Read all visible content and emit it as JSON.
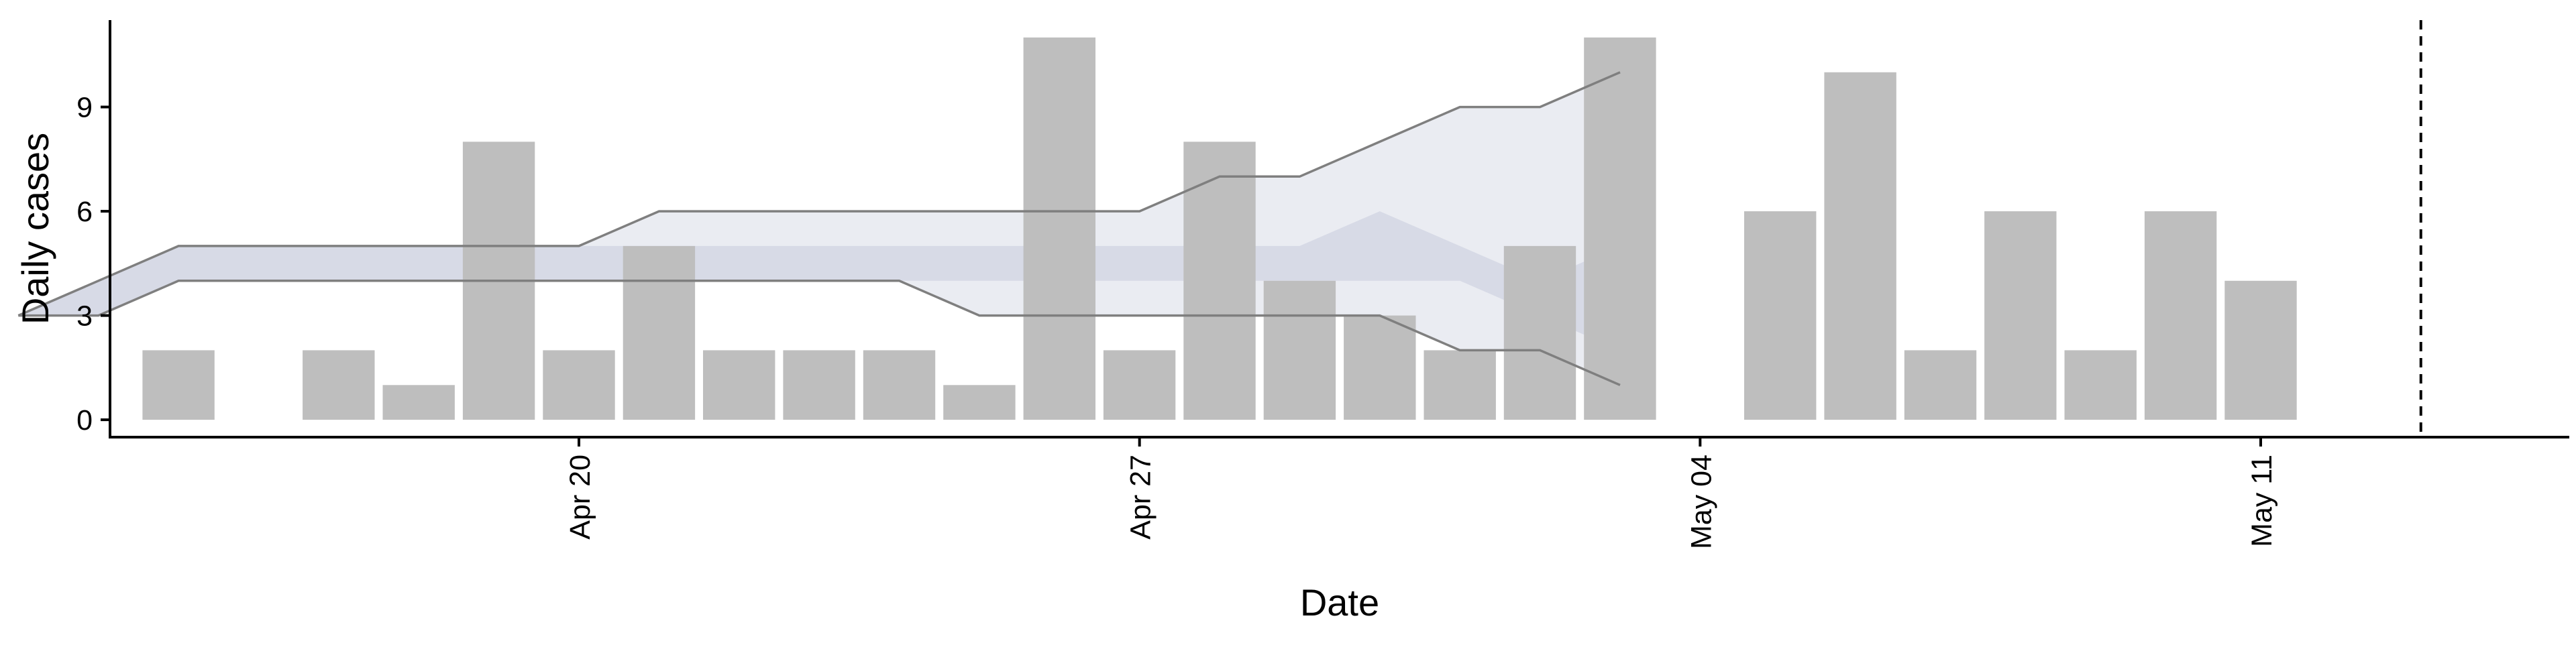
{
  "chart_data": {
    "type": "bar",
    "xlabel": "Date",
    "ylabel": "Daily cases",
    "x_ticks": [
      "Apr 20",
      "Apr 27",
      "May 04",
      "May 11"
    ],
    "x_tick_dates": [
      "2020-04-20",
      "2020-04-27",
      "2020-05-04",
      "2020-05-11"
    ],
    "y_ticks": [
      0,
      3,
      6,
      9
    ],
    "ylim": [
      -0.5,
      11.5
    ],
    "xlim": [
      "2020-04-14",
      "2020-05-16"
    ],
    "grid": false,
    "legend": "none",
    "colors": {
      "bars": "#bebebe",
      "ribbon": "#b4b9d2",
      "band_line": "#7f7f7f",
      "vline": "#000000",
      "axis": "#000000"
    },
    "series": [
      {
        "type": "bar",
        "x": [
          "2020-04-15",
          "2020-04-17",
          "2020-04-18",
          "2020-04-19",
          "2020-04-20",
          "2020-04-21",
          "2020-04-22",
          "2020-04-23",
          "2020-04-24",
          "2020-04-25",
          "2020-04-26",
          "2020-04-27",
          "2020-04-28",
          "2020-04-29",
          "2020-04-30",
          "2020-05-01",
          "2020-05-02",
          "2020-05-03",
          "2020-05-05",
          "2020-05-06",
          "2020-05-07",
          "2020-05-08",
          "2020-05-09",
          "2020-05-10",
          "2020-05-11",
          "2020-05-12"
        ],
        "values": [
          2,
          2,
          1,
          8,
          2,
          5,
          2,
          2,
          2,
          1,
          11,
          2,
          8,
          4,
          3,
          2,
          5,
          11,
          6,
          10,
          2,
          6,
          2,
          6,
          4,
          0
        ]
      },
      {
        "type": "band",
        "x": [
          "2020-04-13",
          "2020-04-14",
          "2020-04-15",
          "2020-04-16",
          "2020-04-17",
          "2020-04-18",
          "2020-04-19",
          "2020-04-20",
          "2020-04-21",
          "2020-04-22",
          "2020-04-23",
          "2020-04-24",
          "2020-04-25",
          "2020-04-26",
          "2020-04-27",
          "2020-04-28",
          "2020-04-29",
          "2020-04-30",
          "2020-05-01",
          "2020-05-02",
          "2020-05-03"
        ],
        "upper": [
          3,
          4,
          5,
          5,
          5,
          5,
          5,
          5,
          6,
          6,
          6,
          6,
          6,
          6,
          6,
          7,
          7,
          8,
          9,
          9,
          10
        ],
        "lower": [
          3,
          3,
          4,
          4,
          4,
          4,
          4,
          4,
          4,
          4,
          4,
          4,
          3,
          3,
          3,
          3,
          3,
          3,
          2,
          2,
          1
        ],
        "inner_upper": [
          3,
          4,
          5,
          5,
          5,
          5,
          5,
          5,
          5,
          5,
          5,
          5,
          5,
          5,
          5,
          5,
          5,
          6,
          5,
          4,
          5
        ],
        "inner_lower": [
          3,
          3,
          4,
          4,
          4,
          4,
          4,
          4,
          4,
          4,
          4,
          4,
          4,
          4,
          4,
          4,
          4,
          4,
          4,
          3,
          2
        ]
      }
    ],
    "vline": "2020-05-13"
  }
}
